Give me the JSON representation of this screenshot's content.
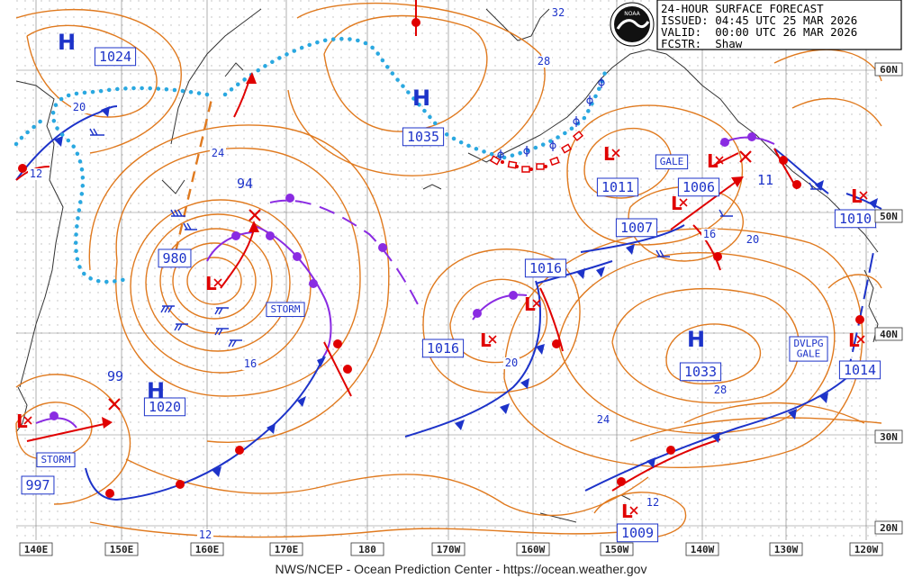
{
  "header": {
    "title": "24-HOUR SURFACE FORECAST",
    "issued": "ISSUED: 04:45 UTC 25 MAR 2026",
    "valid": "VALID:  00:00 UTC 26 MAR 2026",
    "forecaster": "FCSTR:  Shaw",
    "logo_text": "NOAA"
  },
  "footer": "NWS/NCEP - Ocean Prediction Center - https://ocean.weather.gov",
  "longitude_labels": [
    "140E",
    "150E",
    "160E",
    "170E",
    "180",
    "170W",
    "160W",
    "150W",
    "140W",
    "130W",
    "120W"
  ],
  "latitude_labels": [
    "60N",
    "50N",
    "40N",
    "30N",
    "20N"
  ],
  "pressure_centers": [
    {
      "type": "H",
      "label": "1024"
    },
    {
      "type": "H",
      "label": "1035"
    },
    {
      "type": "H",
      "label": "1020"
    },
    {
      "type": "H",
      "label": "1033"
    },
    {
      "type": "L",
      "label": "980"
    },
    {
      "type": "L",
      "label": "997"
    },
    {
      "type": "L",
      "label": "1016"
    },
    {
      "type": "L",
      "label": "1016"
    },
    {
      "type": "L",
      "label": "1011"
    },
    {
      "type": "L",
      "label": "1006"
    },
    {
      "type": "L",
      "label": "1007"
    },
    {
      "type": "L",
      "label": "1010"
    },
    {
      "type": "L",
      "label": "1014"
    },
    {
      "type": "L",
      "label": "1009"
    }
  ],
  "forecast_labels": [
    "94",
    "99",
    "11"
  ],
  "warnings": [
    "STORM",
    "STORM",
    "GALE",
    "DVLPG\nGALE"
  ],
  "isobar_labels": [
    "20",
    "12",
    "24",
    "32",
    "28",
    "16",
    "20",
    "20",
    "24",
    "28",
    "16",
    "12",
    "12"
  ]
}
